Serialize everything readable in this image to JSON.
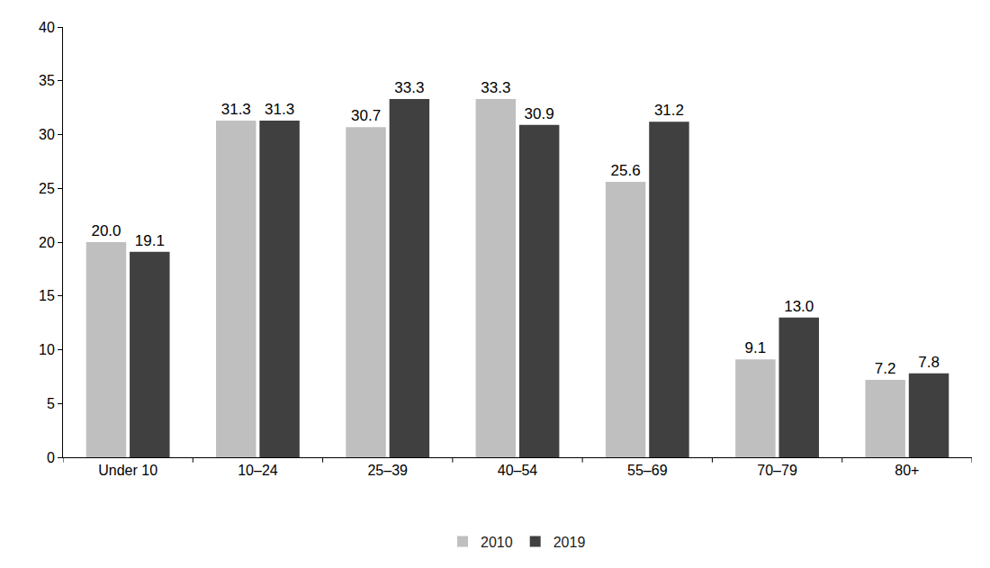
{
  "chart_data": {
    "type": "bar",
    "categories": [
      "Under 10",
      "10–24",
      "25–39",
      "40–54",
      "55–69",
      "70–79",
      "80+"
    ],
    "series": [
      {
        "name": "2010",
        "color": "#bfbfbf",
        "values": [
          20.0,
          31.3,
          30.7,
          33.3,
          25.6,
          9.1,
          7.2
        ],
        "value_labels": [
          "20.0",
          "31.3",
          "30.7",
          "33.3",
          "25.6",
          "9.1",
          "7.2"
        ]
      },
      {
        "name": "2019",
        "color": "#404040",
        "values": [
          19.1,
          31.3,
          33.3,
          30.9,
          31.2,
          13.0,
          7.8
        ],
        "value_labels": [
          "19.1",
          "31.3",
          "33.3",
          "30.9",
          "31.2",
          "13.0",
          "7.8"
        ]
      }
    ],
    "ylim": [
      0,
      40
    ],
    "yticks": [
      0,
      5,
      10,
      15,
      20,
      25,
      30,
      35,
      40
    ],
    "grid": false,
    "legend": "bottom",
    "data_labels": true
  }
}
